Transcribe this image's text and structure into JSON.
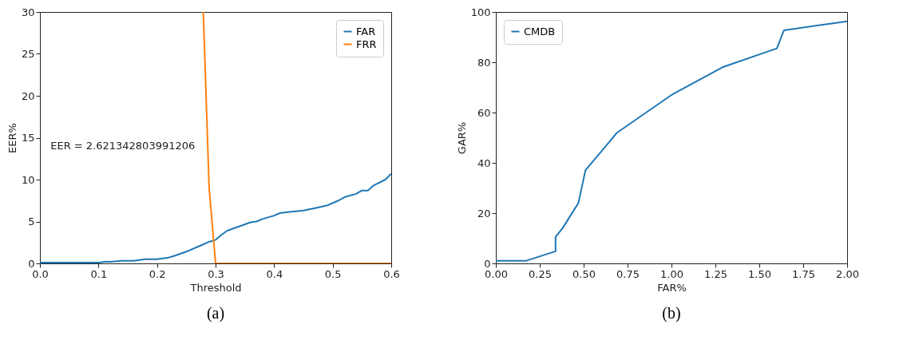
{
  "chart_data": [
    {
      "type": "line",
      "title": "(a)",
      "xlabel": "Threshold",
      "ylabel": "EER%",
      "xlim": [
        0,
        0.6
      ],
      "ylim": [
        0,
        30
      ],
      "xticks": [
        {
          "value": 0,
          "label": "0.0"
        },
        0.1,
        0.2,
        0.3,
        0.4,
        0.5,
        0.6
      ],
      "yticks": [
        0,
        5,
        10,
        15,
        20,
        25,
        30
      ],
      "grid": false,
      "legend": "top right",
      "annotations": [
        "EER = 2.621342803991206"
      ],
      "series": [
        {
          "name": "FAR",
          "color": "#1f77b4",
          "x": [
            0,
            0.05,
            0.1,
            0.11,
            0.12,
            0.14,
            0.16,
            0.18,
            0.2,
            0.22,
            0.23,
            0.25,
            0.27,
            0.29,
            0.3,
            0.31,
            0.32,
            0.34,
            0.36,
            0.37,
            0.38,
            0.4,
            0.41,
            0.42,
            0.45,
            0.47,
            0.49,
            0.51,
            0.52,
            0.54,
            0.55,
            0.56,
            0.57,
            0.59,
            0.6
          ],
          "values": [
            0.1,
            0.1,
            0.1,
            0.2,
            0.2,
            0.3,
            0.3,
            0.5,
            0.5,
            0.7,
            0.9,
            1.4,
            2.0,
            2.6,
            2.8,
            3.4,
            3.9,
            4.4,
            4.9,
            5.0,
            5.3,
            5.7,
            6.0,
            6.1,
            6.3,
            6.6,
            6.9,
            7.5,
            7.9,
            8.3,
            8.7,
            8.7,
            9.3,
            10.0,
            10.7
          ]
        },
        {
          "name": "FRR",
          "color": "#ff7f0e",
          "x": [
            0.279,
            0.289,
            0.3,
            0.6
          ],
          "values": [
            30,
            9,
            0,
            0
          ]
        }
      ]
    },
    {
      "type": "line",
      "title": "(b)",
      "xlabel": "FAR%",
      "ylabel": "GAR%",
      "xlim": [
        0,
        2
      ],
      "ylim": [
        0,
        100
      ],
      "xticks": [
        {
          "value": 0,
          "label": "0.00"
        },
        0.25,
        {
          "value": 0.5,
          "label": "0.50"
        },
        0.75,
        {
          "value": 1,
          "label": "1.00"
        },
        1.25,
        {
          "value": 1.5,
          "label": "1.50"
        },
        1.75,
        {
          "value": 2,
          "label": "2.00"
        }
      ],
      "yticks": [
        0,
        20,
        40,
        60,
        80,
        100
      ],
      "grid": false,
      "legend": "top left",
      "series": [
        {
          "name": "CMDB",
          "color": "#1f77b4",
          "x": [
            0,
            0.17,
            0.34,
            0.34,
            0.38,
            0.47,
            0.51,
            0.69,
            1.0,
            1.29,
            1.6,
            1.64,
            2.0
          ],
          "values": [
            1,
            1,
            4.8,
            10.5,
            14,
            24,
            37,
            52,
            67,
            78,
            85.5,
            92.7,
            96.3
          ]
        }
      ]
    }
  ]
}
